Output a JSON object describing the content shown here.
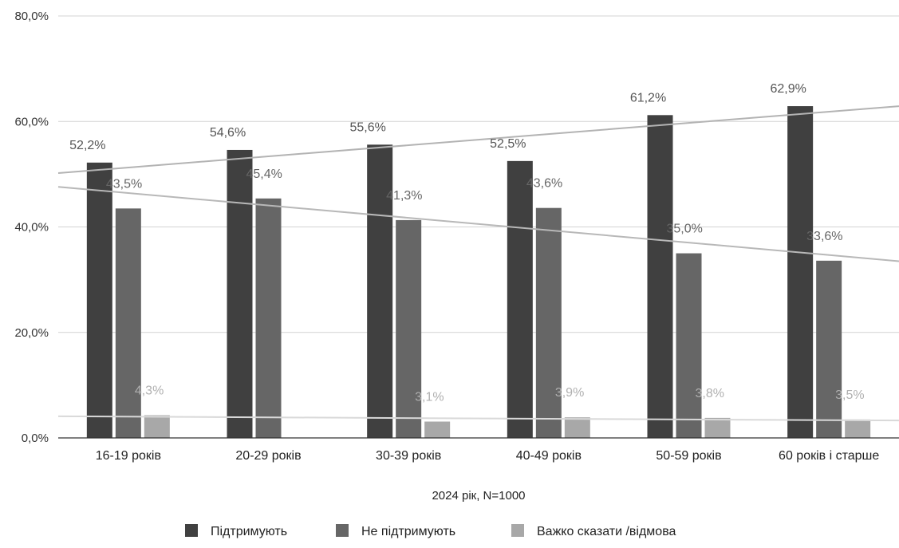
{
  "chart_data": {
    "type": "bar",
    "title": "",
    "xlabel": "2024 рік, N=1000",
    "ylabel": "",
    "ylim": [
      0,
      80
    ],
    "yticks": [
      "0,0%",
      "20,0%",
      "40,0%",
      "60,0%",
      "80,0%"
    ],
    "categories": [
      "16-19 років",
      "20-29 років",
      "30-39 років",
      "40-49 років",
      "50-59 років",
      "60 років і старше"
    ],
    "series": [
      {
        "name": "Підтримують",
        "values": [
          52.2,
          54.6,
          55.6,
          52.5,
          61.2,
          62.9
        ],
        "labels": [
          "52,2%",
          "54,6%",
          "55,6%",
          "52,5%",
          "61,2%",
          "62,9%"
        ],
        "color": "#404040",
        "label_color": "#555555"
      },
      {
        "name": "Не підтримують",
        "values": [
          43.5,
          45.4,
          41.3,
          43.6,
          35.0,
          33.6
        ],
        "labels": [
          "43,5%",
          "45,4%",
          "41,3%",
          "43,6%",
          "35,0%",
          "33,6%"
        ],
        "color": "#666666",
        "label_color": "#666666"
      },
      {
        "name": "Важко сказати /відмова",
        "values": [
          4.3,
          null,
          3.1,
          3.9,
          3.8,
          3.5
        ],
        "labels": [
          "4,3%",
          "",
          "3,1%",
          "3,9%",
          "3,8%",
          "3,5%"
        ],
        "color": "#a8a8a8",
        "label_color": "#b0b0b0"
      }
    ],
    "trendlines": [
      {
        "series": "Підтримують",
        "color": "#b3b3b3",
        "start": 50.2,
        "end": 62.9
      },
      {
        "series": "Не підтримують",
        "color": "#b8b8b8",
        "start": 47.6,
        "end": 33.5
      },
      {
        "series": "Важко сказати /відмова",
        "color": "#d9d9d9",
        "start": 4.1,
        "end": 3.3
      }
    ],
    "grid": true,
    "legend": "bottom-center"
  }
}
